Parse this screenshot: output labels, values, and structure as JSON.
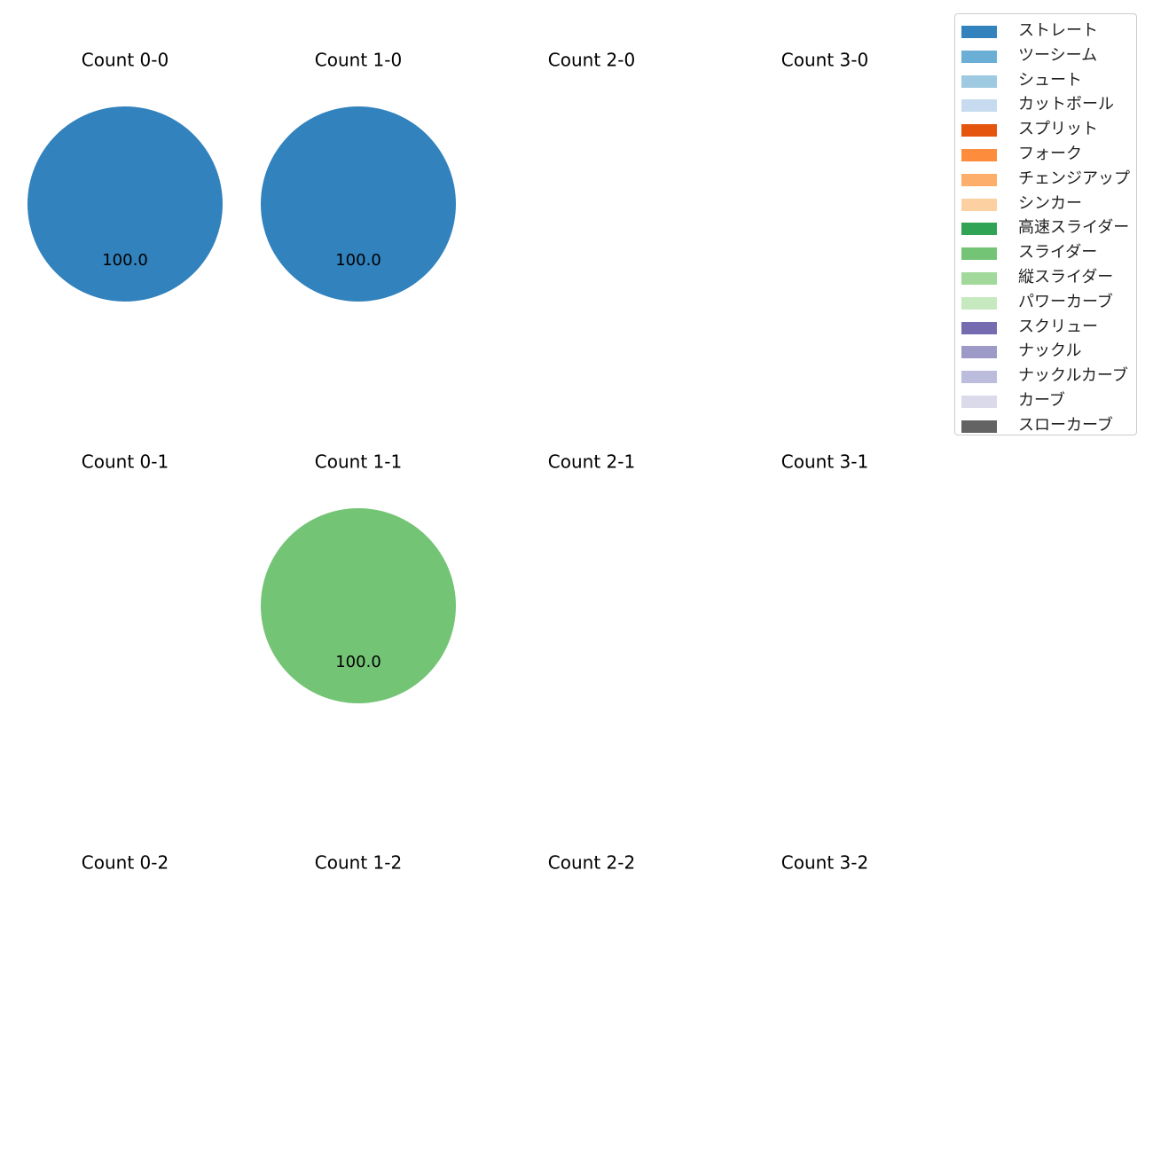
{
  "chart_data": {
    "type": "pie",
    "panels": [
      {
        "title": "Count 0-0",
        "slices": [
          {
            "pitch": "ストレート",
            "value": 100.0
          }
        ]
      },
      {
        "title": "Count 1-0",
        "slices": [
          {
            "pitch": "ストレート",
            "value": 100.0
          }
        ]
      },
      {
        "title": "Count 2-0",
        "slices": []
      },
      {
        "title": "Count 3-0",
        "slices": []
      },
      {
        "title": "Count 0-1",
        "slices": []
      },
      {
        "title": "Count 1-1",
        "slices": [
          {
            "pitch": "スライダー",
            "value": 100.0
          }
        ]
      },
      {
        "title": "Count 2-1",
        "slices": []
      },
      {
        "title": "Count 3-1",
        "slices": []
      },
      {
        "title": "Count 0-2",
        "slices": []
      },
      {
        "title": "Count 1-2",
        "slices": []
      },
      {
        "title": "Count 2-2",
        "slices": []
      },
      {
        "title": "Count 3-2",
        "slices": []
      }
    ],
    "legend": {
      "placement": "top-right",
      "entries": [
        {
          "label": "ストレート",
          "color": "#3182bd"
        },
        {
          "label": "ツーシーム",
          "color": "#6baed6"
        },
        {
          "label": "シュート",
          "color": "#9ecae1"
        },
        {
          "label": "カットボール",
          "color": "#c6dbef"
        },
        {
          "label": "スプリット",
          "color": "#e6550d"
        },
        {
          "label": "フォーク",
          "color": "#fd8d3c"
        },
        {
          "label": "チェンジアップ",
          "color": "#fdae6b"
        },
        {
          "label": "シンカー",
          "color": "#fdd0a2"
        },
        {
          "label": "高速スライダー",
          "color": "#31a354"
        },
        {
          "label": "スライダー",
          "color": "#74c476"
        },
        {
          "label": "縦スライダー",
          "color": "#a1d99b"
        },
        {
          "label": "パワーカーブ",
          "color": "#c7e9c0"
        },
        {
          "label": "スクリュー",
          "color": "#756bb1"
        },
        {
          "label": "ナックル",
          "color": "#9e9ac8"
        },
        {
          "label": "ナックルカーブ",
          "color": "#bcbddc"
        },
        {
          "label": "カーブ",
          "color": "#dadaeb"
        },
        {
          "label": "スローカーブ",
          "color": "#636363"
        }
      ]
    }
  }
}
